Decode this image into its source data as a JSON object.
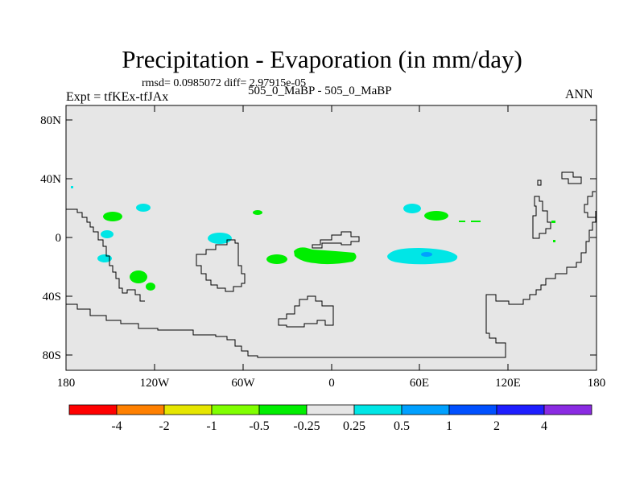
{
  "title": "Precipitation - Evaporation (in mm/day)",
  "stats": "rmsd= 0.0985072 diff= 2.97915e-05",
  "expt": "Expt = tfKEx-tfJAx",
  "cases": "505_0_MaBP - 505_0_MaBP",
  "season": "ANN",
  "colors": {
    "background": "#e6e6e6",
    "coast": "#000000",
    "bins": [
      "#ff0000",
      "#ff8000",
      "#e6e600",
      "#80ff00",
      "#00ee00",
      "#e6e6e6",
      "#00e6e6",
      "#00a0ff",
      "#0050ff",
      "#1e1eff",
      "#8a2be2"
    ]
  },
  "axes": {
    "x_ticks": [
      "180",
      "120W",
      "60W",
      "0",
      "60E",
      "120E",
      "180"
    ],
    "y_ticks": [
      "80N",
      "40N",
      "0",
      "40S",
      "80S"
    ]
  },
  "colorbar": {
    "levels": [
      "-4",
      "-2",
      "-1",
      "-0.5",
      "-0.25",
      "0.25",
      "0.5",
      "1",
      "2",
      "4"
    ]
  },
  "chart_data": {
    "type": "heatmap",
    "title": "Precipitation - Evaporation (in mm/day)",
    "x_range": [
      -180,
      180
    ],
    "y_range": [
      -90,
      90
    ],
    "contour_levels": [
      -4,
      -2,
      -1,
      -0.5,
      -0.25,
      0.25,
      0.5,
      1,
      2,
      4
    ],
    "features": [
      {
        "lon": -152,
        "lat": 14,
        "bin": "-0.5 to -0.25"
      },
      {
        "lon": -130,
        "lat": 20,
        "bin": "0.25 to 0.5"
      },
      {
        "lon": -153,
        "lat": 2,
        "bin": "0.25 to 0.5"
      },
      {
        "lon": -158,
        "lat": -16,
        "bin": "0.25 to 0.5"
      },
      {
        "lon": -132,
        "lat": -27,
        "bin": "-0.5 to -0.25"
      },
      {
        "lon": -124,
        "lat": -35,
        "bin": "-0.5 to -0.25"
      },
      {
        "lon": -75,
        "lat": 0,
        "bin": "0.25 to 0.5"
      },
      {
        "lon": -49,
        "lat": 17,
        "bin": "-0.5 to -0.25"
      },
      {
        "lon": -35,
        "lat": -14,
        "bin": "-0.5 to -0.25"
      },
      {
        "lon": -5,
        "lat": -12,
        "bin": "-0.5 to -0.25"
      },
      {
        "lon": 50,
        "lat": 20,
        "bin": "0.25 to 0.5"
      },
      {
        "lon": 71,
        "lat": 15,
        "bin": "-0.5 to -0.25"
      },
      {
        "lon": 62,
        "lat": -12,
        "bin": "0.25 to 0.5"
      },
      {
        "lon": 63,
        "lat": -11,
        "bin": "0.5 to 1"
      }
    ]
  }
}
